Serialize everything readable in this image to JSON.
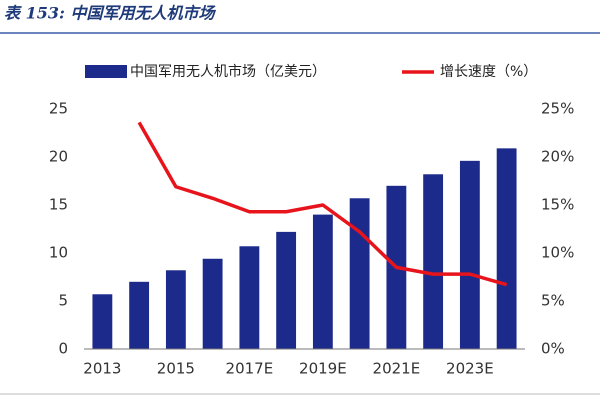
{
  "chart_data": {
    "type": "bar-line",
    "title": "表 153: 中国军用无人机市场",
    "categories": [
      "2013",
      null,
      "2015",
      null,
      "2017E",
      null,
      "2019E",
      null,
      "2021E",
      null,
      "2023E",
      null
    ],
    "series": [
      {
        "name": "中国军用无人机市场（亿美元）",
        "color": "#1c2a8c",
        "type": "bar",
        "values": [
          5.7,
          7.0,
          8.2,
          9.4,
          10.7,
          12.2,
          14.0,
          15.7,
          17.0,
          18.2,
          19.6,
          20.9
        ]
      },
      {
        "name": "增长速度（%）",
        "color": "#e8141c",
        "type": "line",
        "axis": "y2",
        "values": [
          null,
          23.6,
          16.9,
          15.7,
          14.3,
          14.3,
          15.0,
          12.2,
          8.5,
          7.8,
          7.8,
          6.7
        ]
      }
    ],
    "ylim": [
      0,
      25
    ],
    "yticks": [
      0,
      5,
      10,
      15,
      20,
      25
    ],
    "y2lim": [
      0,
      25
    ],
    "y2ticks": [
      {
        "value": 0,
        "label": "0%"
      },
      {
        "value": 5,
        "label": "5%"
      },
      {
        "value": 10,
        "label": "10%"
      },
      {
        "value": 15,
        "label": "15%"
      },
      {
        "value": 20,
        "label": "20%"
      },
      {
        "value": 25,
        "label": "25%"
      }
    ],
    "grid": false
  }
}
